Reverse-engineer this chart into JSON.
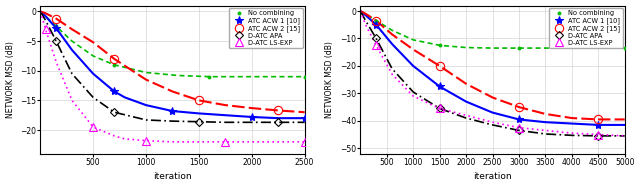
{
  "subplot1": {
    "xlim": [
      0,
      2500
    ],
    "ylim": [
      -24,
      1
    ],
    "xticks": [
      500,
      1000,
      1500,
      2000,
      2500
    ],
    "yticks": [
      0,
      -5,
      -10,
      -15,
      -20
    ],
    "xlabel": "iteration",
    "ylabel": "NETWORK MSD (dB)"
  },
  "subplot2": {
    "xlim": [
      0,
      5000
    ],
    "ylim": [
      -52,
      2
    ],
    "xticks": [
      500,
      1000,
      1500,
      2000,
      2500,
      3000,
      3500,
      4000,
      4500,
      5000
    ],
    "yticks": [
      0,
      -10,
      -20,
      -30,
      -40,
      -50
    ],
    "xlabel": "iteration",
    "ylabel": "NETWORK MSD (dB)"
  },
  "curves": {
    "no_combining": {
      "label": "No combining",
      "color": "#00bb00",
      "linestyle": "dotted",
      "linewidth": 1.2,
      "marker": ".",
      "markersize": 4,
      "markerfacecolor": "#00bb00",
      "sp1": {
        "x": [
          1,
          50,
          150,
          300,
          500,
          700,
          1000,
          1300,
          1600,
          2000,
          2500
        ],
        "y": [
          0,
          -0.8,
          -2.5,
          -5.0,
          -7.5,
          -9.0,
          -10.3,
          -10.8,
          -11.0,
          -11.0,
          -11.0
        ]
      },
      "sp2": {
        "x": [
          1,
          100,
          300,
          600,
          1000,
          1500,
          2000,
          2500,
          3000,
          4000,
          5000
        ],
        "y": [
          0,
          -1.0,
          -3.5,
          -7.0,
          -10.5,
          -12.5,
          -13.3,
          -13.5,
          -13.5,
          -13.5,
          -13.5
        ]
      }
    },
    "atc_acw1": {
      "label": "ATC ACW 1 [10]",
      "color": "#0000ff",
      "linestyle": "solid",
      "linewidth": 1.5,
      "marker": "*",
      "markersize": 6,
      "markerfacecolor": "#0000ff",
      "sp1": {
        "x": [
          1,
          50,
          150,
          300,
          500,
          700,
          800,
          1000,
          1250,
          1500,
          1750,
          2000,
          2250,
          2500
        ],
        "y": [
          0,
          -0.8,
          -2.8,
          -6.5,
          -10.5,
          -13.5,
          -14.5,
          -15.8,
          -16.8,
          -17.2,
          -17.5,
          -17.8,
          -18.0,
          -18.0
        ]
      },
      "sp2": {
        "x": [
          1,
          100,
          300,
          600,
          1000,
          1500,
          2000,
          2500,
          3000,
          3500,
          4000,
          4500,
          5000
        ],
        "y": [
          0,
          -1.5,
          -5.0,
          -12.0,
          -20.0,
          -27.5,
          -33.0,
          -37.0,
          -39.5,
          -40.5,
          -41.0,
          -41.5,
          -41.5
        ]
      }
    },
    "atc_acw2": {
      "label": "ATC ACW 2 [15]",
      "color": "#ff0000",
      "linestyle": "dashed",
      "linewidth": 1.5,
      "marker": "o",
      "markersize": 6,
      "markerfacecolor": "none",
      "sp1": {
        "x": [
          1,
          50,
          150,
          300,
          500,
          700,
          1000,
          1250,
          1500,
          1750,
          2000,
          2250,
          2500
        ],
        "y": [
          0,
          -0.3,
          -1.2,
          -3.0,
          -5.2,
          -8.0,
          -11.5,
          -13.5,
          -15.0,
          -15.8,
          -16.3,
          -16.7,
          -17.0
        ]
      },
      "sp2": {
        "x": [
          1,
          100,
          300,
          600,
          1000,
          1500,
          2000,
          2500,
          3000,
          3500,
          4000,
          4500,
          5000
        ],
        "y": [
          0,
          -1.0,
          -3.5,
          -8.5,
          -14.0,
          -20.0,
          -26.5,
          -31.5,
          -35.0,
          -37.5,
          -39.0,
          -39.5,
          -39.5
        ]
      }
    },
    "datc_apa": {
      "label": "D-ATC APA",
      "color": "#000000",
      "linestyle": "dashdot",
      "linewidth": 1.2,
      "marker": "D",
      "markersize": 4,
      "markerfacecolor": "none",
      "sp1": {
        "x": [
          1,
          50,
          150,
          300,
          500,
          700,
          1000,
          1250,
          1500,
          1750,
          2000,
          2250,
          2500
        ],
        "y": [
          0,
          -1.5,
          -5.0,
          -10.5,
          -14.5,
          -17.0,
          -18.3,
          -18.5,
          -18.6,
          -18.7,
          -18.7,
          -18.7,
          -18.7
        ]
      },
      "sp2": {
        "x": [
          1,
          100,
          300,
          600,
          1000,
          1500,
          2000,
          2500,
          3000,
          3500,
          4000,
          4500,
          5000
        ],
        "y": [
          0,
          -3.5,
          -10.0,
          -21.0,
          -29.5,
          -35.5,
          -39.0,
          -41.5,
          -43.5,
          -44.8,
          -45.3,
          -45.5,
          -45.5
        ]
      }
    },
    "datc_lsexp": {
      "label": "D-ATC LS-EXP",
      "color": "#ff00ff",
      "linestyle": "dotted",
      "linewidth": 1.2,
      "marker": "^",
      "markersize": 6,
      "markerfacecolor": "none",
      "sp1": {
        "x": [
          1,
          50,
          150,
          300,
          500,
          700,
          800,
          1000,
          1250,
          1500,
          1750,
          2000,
          2250,
          2500
        ],
        "y": [
          0,
          -3.0,
          -8.5,
          -15.0,
          -19.5,
          -21.0,
          -21.5,
          -21.8,
          -22.0,
          -22.0,
          -22.0,
          -22.0,
          -22.0,
          -22.0
        ]
      },
      "sp2": {
        "x": [
          1,
          100,
          300,
          600,
          1000,
          1500,
          2000,
          2500,
          3000,
          3500,
          4000,
          4500,
          5000
        ],
        "y": [
          0,
          -5.0,
          -12.5,
          -23.0,
          -31.0,
          -35.5,
          -38.0,
          -40.5,
          -42.5,
          -43.5,
          -44.5,
          -45.0,
          -45.5
        ]
      }
    }
  },
  "bg_color": "#ffffff",
  "grid_color": "#cccccc",
  "fig_width": 6.4,
  "fig_height": 1.87,
  "dpi": 100
}
